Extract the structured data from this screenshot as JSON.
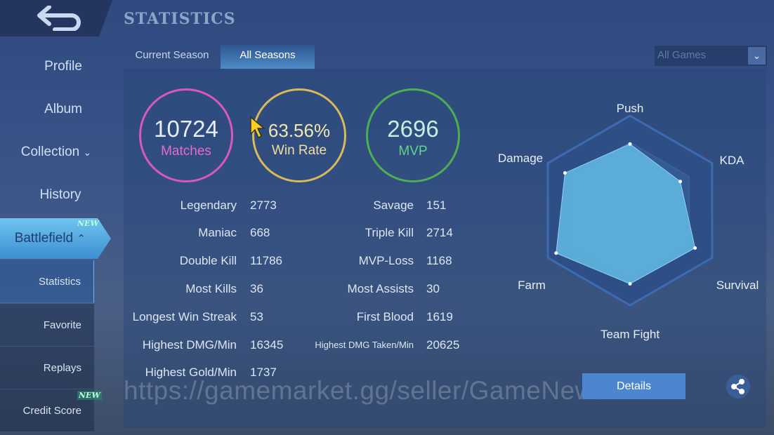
{
  "header": {
    "title": "STATISTICS",
    "back_icon": "back-arrow-icon"
  },
  "sidebar": {
    "items": [
      "Profile",
      "Album",
      "Collection",
      "History"
    ],
    "battlefield": "Battlefield",
    "new_badge": "NEW",
    "subitems": [
      "Statistics",
      "Favorite",
      "Replays",
      "Credit Score"
    ]
  },
  "tabs": [
    "Current Season",
    "All Seasons"
  ],
  "filter": {
    "selected": "All Games"
  },
  "summary": [
    {
      "value": "10724",
      "label": "Matches",
      "color": "#d957c0"
    },
    {
      "value": "63.56%",
      "label": "Win Rate",
      "color": "#d9b95a"
    },
    {
      "value": "2696",
      "label": "MVP",
      "color": "#4caf50"
    }
  ],
  "stats_left": [
    [
      "Legendary",
      "2773"
    ],
    [
      "Maniac",
      "668"
    ],
    [
      "Double Kill",
      "11786"
    ],
    [
      "Most Kills",
      "36"
    ],
    [
      "Longest Win Streak",
      "53"
    ],
    [
      "Highest DMG/Min",
      "16345"
    ],
    [
      "Highest Gold/Min",
      "1737"
    ]
  ],
  "stats_right": [
    [
      "Savage",
      "151"
    ],
    [
      "Triple Kill",
      "2714"
    ],
    [
      "MVP-Loss",
      "1168"
    ],
    [
      "Most Assists",
      "30"
    ],
    [
      "First Blood",
      "1619"
    ],
    [
      "Highest DMG Taken/Min",
      "20625"
    ]
  ],
  "chart_data": {
    "type": "radar",
    "categories": [
      "Push",
      "KDA",
      "Survival",
      "Team Fight",
      "Farm",
      "Damage"
    ],
    "values": [
      0.78,
      0.68,
      0.88,
      0.86,
      1.0,
      0.88
    ],
    "range": [
      0,
      1
    ],
    "fill": "#5fb3e0"
  },
  "details_label": "Details",
  "watermark": "https://gamemarket.gg/seller/GameNews"
}
